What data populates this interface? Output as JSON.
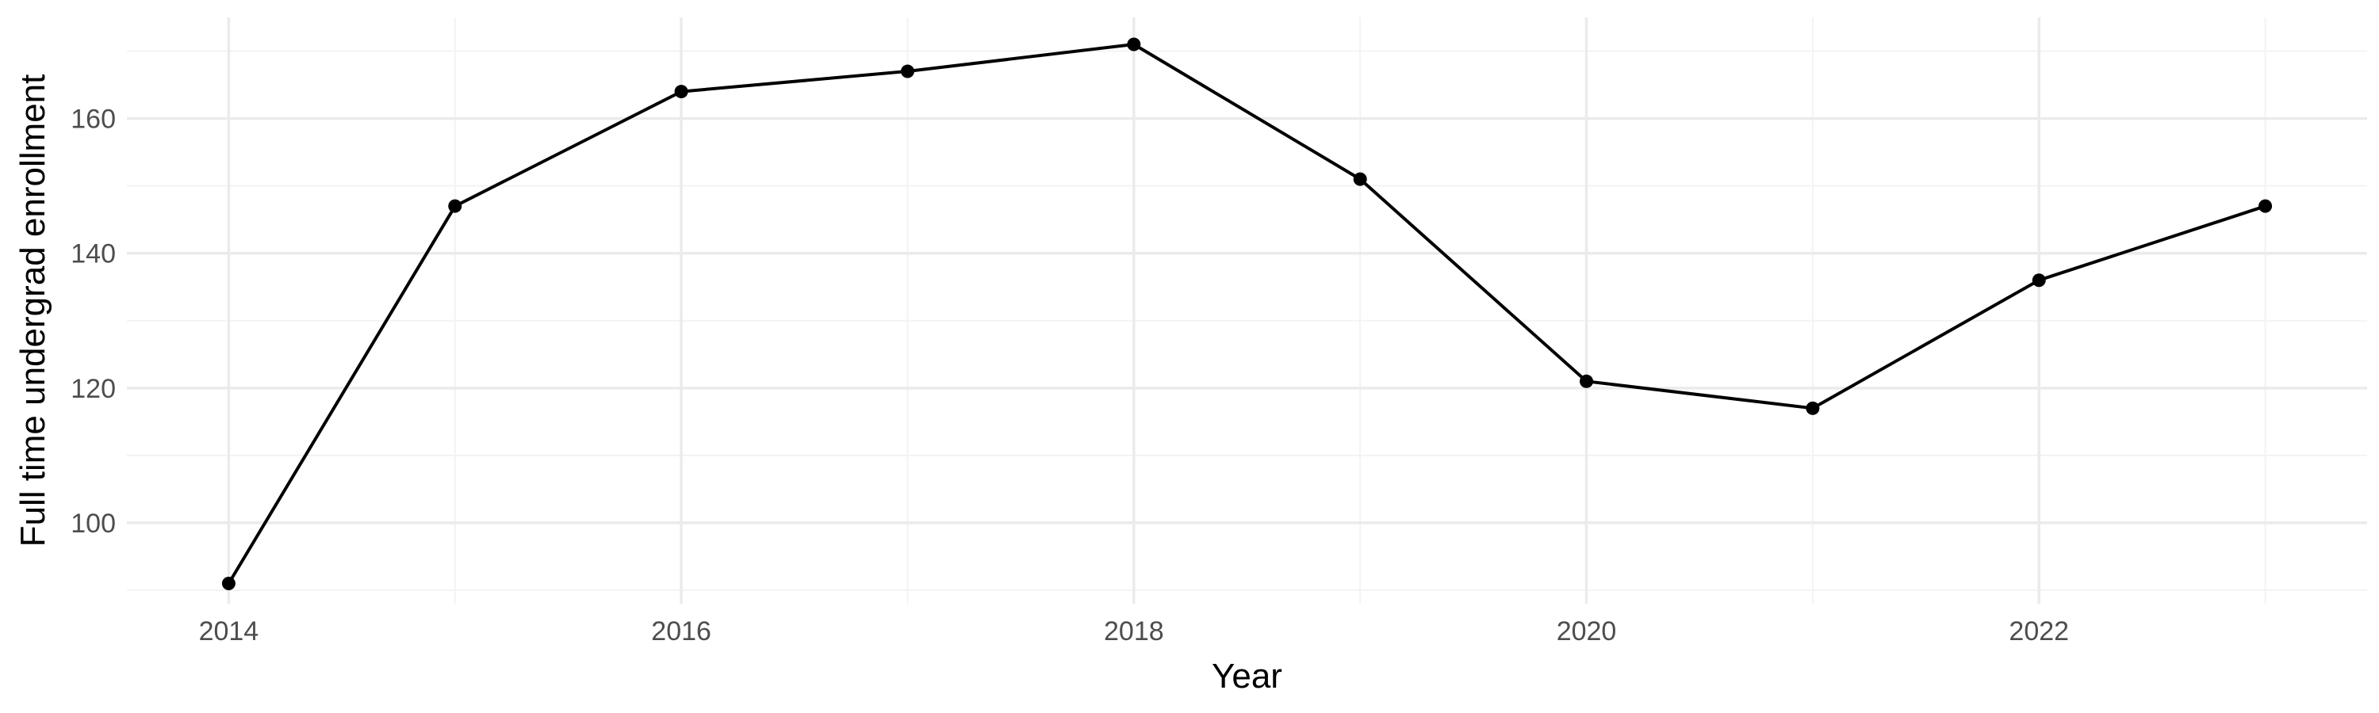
{
  "chart_data": {
    "type": "line",
    "title": "",
    "xlabel": "Year",
    "ylabel": "Full time undergrad enrollment",
    "x": [
      2014,
      2015,
      2016,
      2017,
      2018,
      2019,
      2020,
      2021,
      2022,
      2023
    ],
    "series": [
      {
        "values": [
          91,
          147,
          164,
          167,
          171,
          151,
          121,
          117,
          136,
          147
        ],
        "color": "#000000"
      }
    ],
    "xlim": [
      2013.55,
      2023.45
    ],
    "ylim": [
      88,
      175
    ],
    "x_ticks": [
      2014,
      2016,
      2018,
      2020,
      2022
    ],
    "x_tick_labels": [
      "2014",
      "2016",
      "2018",
      "2020",
      "2022"
    ],
    "y_ticks": [
      100,
      120,
      140,
      160
    ],
    "y_tick_labels": [
      "100",
      "120",
      "140",
      "160"
    ],
    "grid": true,
    "legend": "none",
    "markers": true
  }
}
